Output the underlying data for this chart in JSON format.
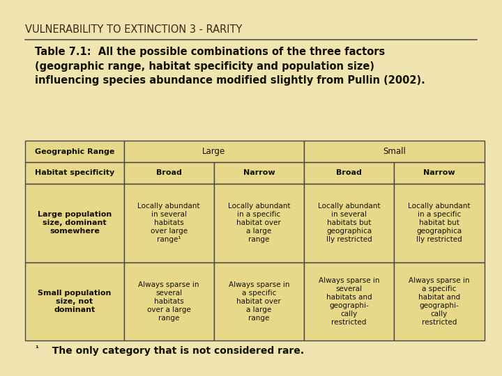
{
  "title": "VULNERABILITY TO EXTINCTION 3 - RARITY",
  "subtitle": "Table 7.1:  All the possible combinations of the three factors\n(geographic range, habitat specificity and population size)\ninfluencing species abundance modified slightly from Pullin (2002).",
  "footnote_super": "¹",
  "footnote_text": "  The only category that is not considered rare.",
  "background_color": "#f0e4b0",
  "table_bg": "#e8d88a",
  "border_color": "#444444",
  "col_headers_row1": [
    "Geographic Range",
    "Large",
    "Small"
  ],
  "col_headers_row2": [
    "Habitat specificity",
    "Broad",
    "Narrow",
    "Broad",
    "Narrow"
  ],
  "row1_label": "Large population\nsize, dominant\nsomewhere",
  "row1_cells": [
    "Locally abundant\nin several\nhabitats\nover large\nrange¹",
    "Locally abundant\nin a specific\nhabitat over\na large\nrange",
    "Locally abundant\nin several\nhabitats but\ngeographica\nlly restricted",
    "Locally abundant\nin a specific\nhabitat but\ngeographica\nlly restricted"
  ],
  "row2_label": "Small population\nsize, not\ndominant",
  "row2_cells": [
    "Always sparse in\nseveral\nhabitats\nover a large\nrange",
    "Always sparse in\na specific\nhabitat over\na large\nrange",
    "Always sparse in\nseveral\nhabitats and\ngeographi-\ncally\nrestricted",
    "Always sparse in\na specific\nhabitat and\ngeographi-\ncally\nrestricted"
  ]
}
